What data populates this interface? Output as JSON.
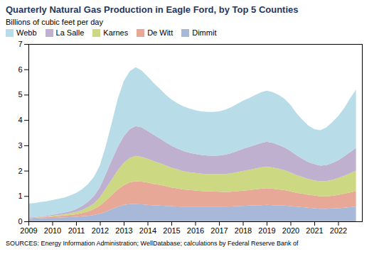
{
  "chart_data": {
    "type": "area",
    "stacked": true,
    "title": "Quarterly Natural Gas Production in Eagle Ford, by Top 5 Counties",
    "ylabel": "Billions of cubic feet per day",
    "source": "SOURCES: Energy Information Administration; WellDatabase; calculations by Federal Reserve Bank of",
    "legend": "upper left",
    "grid": false,
    "xlim": [
      2009,
      2023
    ],
    "xticks": [
      2009,
      2010,
      2011,
      2012,
      2013,
      2014,
      2015,
      2016,
      2017,
      2018,
      2019,
      2020,
      2021,
      2022
    ],
    "ylim": [
      0,
      7
    ],
    "yticks": [
      0,
      1,
      2,
      3,
      4,
      5,
      6,
      7
    ],
    "x": [
      2009,
      2009.25,
      2009.5,
      2009.75,
      2010,
      2010.25,
      2010.5,
      2010.75,
      2011,
      2011.25,
      2011.5,
      2011.75,
      2012,
      2012.25,
      2012.5,
      2012.75,
      2013,
      2013.25,
      2013.5,
      2013.75,
      2014,
      2014.25,
      2014.5,
      2014.75,
      2015,
      2015.25,
      2015.5,
      2015.75,
      2016,
      2016.25,
      2016.5,
      2016.75,
      2017,
      2017.25,
      2017.5,
      2017.75,
      2018,
      2018.25,
      2018.5,
      2018.75,
      2019,
      2019.25,
      2019.5,
      2019.75,
      2020,
      2020.25,
      2020.5,
      2020.75,
      2021,
      2021.25,
      2021.5,
      2021.75,
      2022,
      2022.25,
      2022.5,
      2022.75
    ],
    "series": [
      {
        "name": "Dimmit",
        "color": "#a8b8d8",
        "values": [
          0.1,
          0.11,
          0.12,
          0.13,
          0.14,
          0.15,
          0.16,
          0.17,
          0.18,
          0.2,
          0.22,
          0.25,
          0.3,
          0.38,
          0.48,
          0.58,
          0.65,
          0.68,
          0.68,
          0.67,
          0.65,
          0.63,
          0.62,
          0.61,
          0.6,
          0.59,
          0.58,
          0.58,
          0.58,
          0.58,
          0.58,
          0.58,
          0.58,
          0.58,
          0.59,
          0.6,
          0.61,
          0.62,
          0.63,
          0.64,
          0.65,
          0.64,
          0.63,
          0.62,
          0.6,
          0.58,
          0.56,
          0.54,
          0.52,
          0.5,
          0.5,
          0.51,
          0.52,
          0.54,
          0.56,
          0.58
        ]
      },
      {
        "name": "De Witt",
        "color": "#e8a898",
        "values": [
          0.03,
          0.03,
          0.04,
          0.04,
          0.05,
          0.06,
          0.07,
          0.08,
          0.1,
          0.13,
          0.17,
          0.23,
          0.32,
          0.44,
          0.56,
          0.68,
          0.78,
          0.86,
          0.9,
          0.9,
          0.88,
          0.85,
          0.82,
          0.78,
          0.74,
          0.71,
          0.68,
          0.66,
          0.64,
          0.62,
          0.61,
          0.6,
          0.59,
          0.58,
          0.58,
          0.59,
          0.6,
          0.61,
          0.63,
          0.65,
          0.66,
          0.65,
          0.63,
          0.61,
          0.58,
          0.55,
          0.53,
          0.51,
          0.5,
          0.49,
          0.49,
          0.5,
          0.52,
          0.55,
          0.58,
          0.62
        ]
      },
      {
        "name": "Karnes",
        "color": "#ccd882",
        "values": [
          0.01,
          0.01,
          0.02,
          0.02,
          0.03,
          0.04,
          0.05,
          0.07,
          0.09,
          0.12,
          0.17,
          0.23,
          0.33,
          0.48,
          0.62,
          0.76,
          0.88,
          0.96,
          1.0,
          0.98,
          0.94,
          0.9,
          0.86,
          0.82,
          0.78,
          0.75,
          0.72,
          0.7,
          0.69,
          0.68,
          0.68,
          0.68,
          0.69,
          0.71,
          0.73,
          0.75,
          0.78,
          0.8,
          0.82,
          0.84,
          0.85,
          0.84,
          0.82,
          0.79,
          0.75,
          0.7,
          0.66,
          0.62,
          0.6,
          0.59,
          0.6,
          0.63,
          0.67,
          0.71,
          0.76,
          0.8
        ]
      },
      {
        "name": "La Salle",
        "color": "#c0b0d0",
        "values": [
          0.02,
          0.02,
          0.02,
          0.03,
          0.04,
          0.05,
          0.06,
          0.08,
          0.11,
          0.15,
          0.21,
          0.29,
          0.4,
          0.58,
          0.76,
          0.92,
          1.05,
          1.14,
          1.18,
          1.16,
          1.1,
          1.04,
          0.98,
          0.92,
          0.87,
          0.83,
          0.8,
          0.77,
          0.75,
          0.74,
          0.73,
          0.73,
          0.74,
          0.76,
          0.79,
          0.83,
          0.87,
          0.9,
          0.93,
          0.96,
          0.98,
          0.97,
          0.94,
          0.9,
          0.85,
          0.78,
          0.72,
          0.67,
          0.64,
          0.62,
          0.63,
          0.66,
          0.7,
          0.76,
          0.83,
          0.9
        ]
      },
      {
        "name": "Webb",
        "color": "#b8dce8",
        "values": [
          0.55,
          0.55,
          0.56,
          0.57,
          0.58,
          0.59,
          0.6,
          0.62,
          0.64,
          0.67,
          0.7,
          0.76,
          0.86,
          1.1,
          1.48,
          1.9,
          2.18,
          2.28,
          2.32,
          2.25,
          2.15,
          2.05,
          1.96,
          1.88,
          1.82,
          1.78,
          1.76,
          1.74,
          1.73,
          1.72,
          1.72,
          1.73,
          1.74,
          1.77,
          1.81,
          1.86,
          1.9,
          1.93,
          1.97,
          2.0,
          2.02,
          2.0,
          1.97,
          1.92,
          1.82,
          1.66,
          1.54,
          1.44,
          1.38,
          1.4,
          1.48,
          1.61,
          1.74,
          1.9,
          2.12,
          2.3
        ]
      }
    ]
  }
}
